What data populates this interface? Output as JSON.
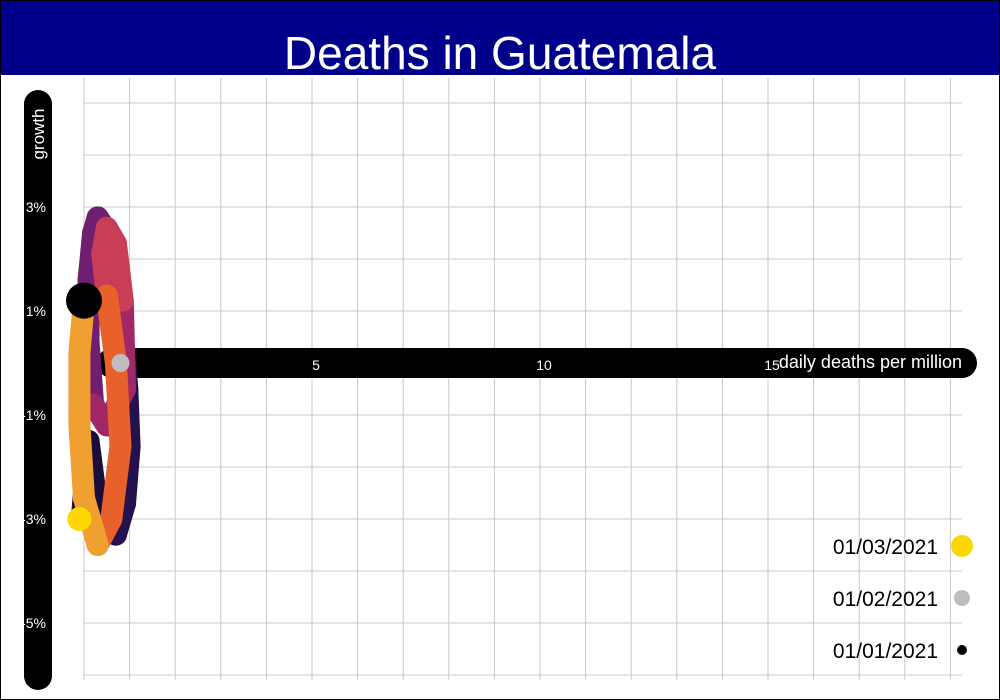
{
  "title": "Deaths in Guatemala",
  "colors": {
    "header_bg": "#00008b",
    "title_text": "#ffffff",
    "axis_bar": "#000000",
    "grid": "#c8c8c8",
    "marker_latest": "#ffd700",
    "marker_mid": "#bebebe",
    "marker_start": "#000000"
  },
  "chart_data": {
    "type": "line",
    "title": "Deaths in Guatemala",
    "xlabel": "daily deaths per million",
    "ylabel": "growth",
    "x_ticks": [
      5,
      10,
      15
    ],
    "y_ticks": [
      "3%",
      "1%",
      "-1%",
      "-3%",
      "-5%"
    ],
    "y_tick_values": [
      3,
      1,
      -1,
      -3,
      -5
    ],
    "grid": true,
    "legend_position": "bottom-right",
    "legend": [
      {
        "label": "01/03/2021",
        "color": "#ffd700"
      },
      {
        "label": "01/02/2021",
        "color": "#bebebe"
      },
      {
        "label": "01/01/2021",
        "color": "#000000"
      }
    ],
    "series": [
      {
        "x": [
          0.0,
          -0.1,
          -0.1,
          0.0,
          0.3,
          0.6,
          0.8,
          0.7,
          0.5,
          0.4,
          0.5,
          0.7,
          0.85,
          0.9,
          0.5,
          0.2,
          0.1,
          0.1,
          0.2,
          0.3,
          0.45,
          0.6,
          0.75,
          0.85,
          0.95,
          1.0,
          0.9,
          0.7,
          0.45,
          0.25,
          0.1,
          -0.05
        ],
        "y": [
          1.2,
          0.2,
          -1.2,
          -2.6,
          -3.5,
          -3.0,
          -1.6,
          0.0,
          1.3,
          2.1,
          2.6,
          2.3,
          1.2,
          -0.5,
          -1.2,
          -0.8,
          0.4,
          1.6,
          2.5,
          2.8,
          2.6,
          2.1,
          1.4,
          0.5,
          -0.5,
          -1.6,
          -2.7,
          -3.3,
          -3.1,
          -2.5,
          -1.5,
          -3.0
        ]
      }
    ],
    "markers": [
      {
        "label": "01/01/2021",
        "x": 0.0,
        "y": 1.2
      },
      {
        "label": "01/02/2021",
        "x": 0.8,
        "y": 0.0
      },
      {
        "label": "01/03/2021",
        "x": -0.1,
        "y": -3.0
      }
    ]
  }
}
